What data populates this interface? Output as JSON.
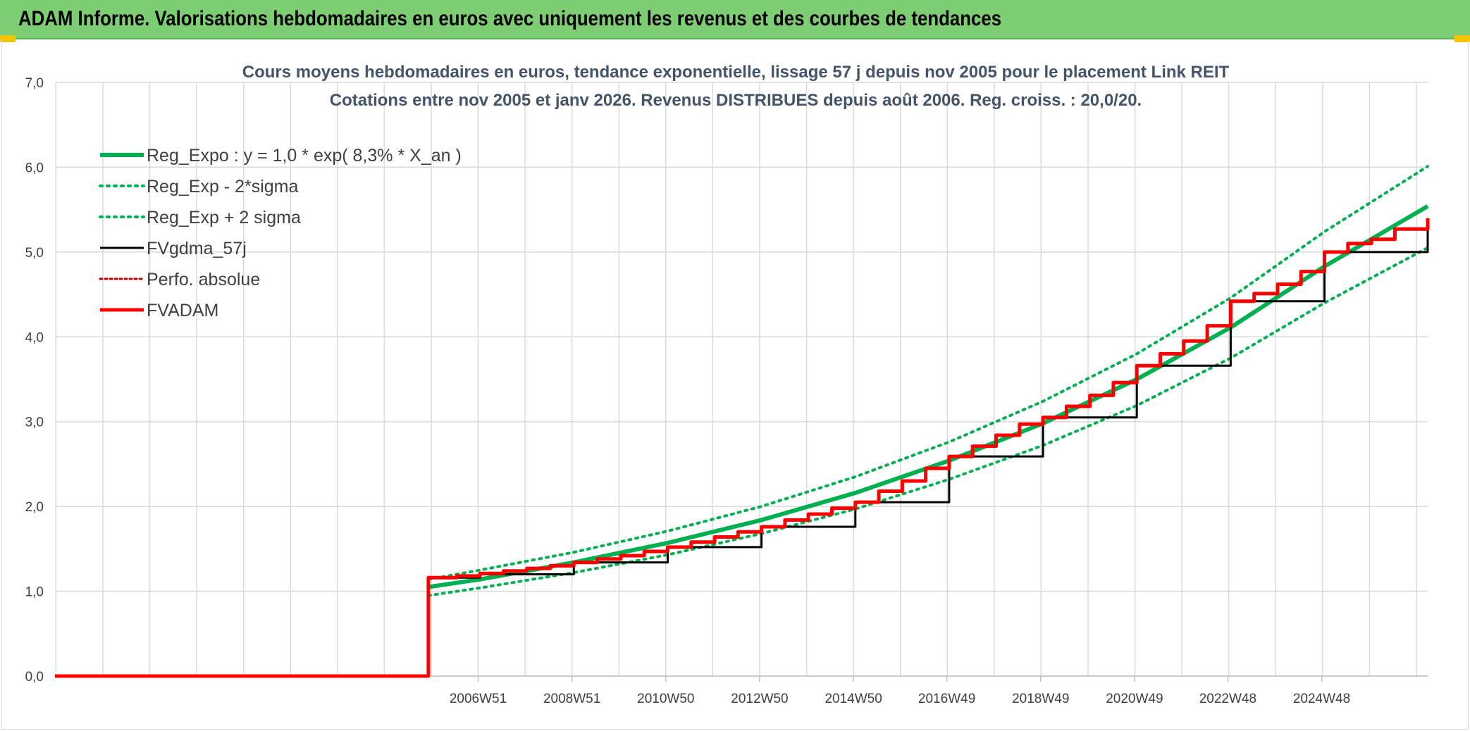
{
  "header": {
    "title": "ADAM Informe. Valorisations hebdomadaires en euros avec uniquement les revenus et des courbes de tendances"
  },
  "colors": {
    "banner": "#7dcd72",
    "trend": "#00b050",
    "fvgdma": "#000000",
    "fvadam": "#ff0000",
    "perfo": "#c00000",
    "grid": "#d9d9d9",
    "title_text": "#44546a"
  },
  "chart_data": {
    "type": "line",
    "title_lines": [
      "Cours moyens hebdomadaires en euros, tendance exponentielle, lissage 57 j depuis nov 2005 pour le placement Link REIT",
      "Cotations entre nov 2005 et janv 2026. Revenus DISTRIBUES depuis août 2006. Reg. croiss. : 20,0/20."
    ],
    "y_ticks": [
      "0,0",
      "1,0",
      "2,0",
      "3,0",
      "4,0",
      "5,0",
      "6,0",
      "7,0"
    ],
    "ylim": [
      0,
      7
    ],
    "x_ticks": [
      "2006W51",
      "2008W51",
      "2010W50",
      "2012W50",
      "2014W50",
      "2016W49",
      "2018W49",
      "2020W49",
      "2022W48",
      "2024W48"
    ],
    "x_tick_years": [
      2006.96,
      2008.96,
      2010.96,
      2012.96,
      2014.96,
      2016.95,
      2018.95,
      2020.95,
      2022.94,
      2024.94
    ],
    "xlim": [
      1997.94,
      2027.2
    ],
    "grid": true,
    "legend_position": "top-left",
    "start_year": 2005.9,
    "series": [
      {
        "name": "Reg_Expo : y = 1,0 * exp( 8,3% *  X_an )",
        "style": "solid-thick",
        "color": "#00b050",
        "x": [
          2005.9,
          2007,
          2009,
          2011,
          2013,
          2015,
          2017,
          2019,
          2021,
          2023,
          2025,
          2027.2
        ],
        "y": [
          1.05,
          1.14,
          1.34,
          1.57,
          1.84,
          2.16,
          2.54,
          2.98,
          3.5,
          4.11,
          4.83,
          5.54
        ]
      },
      {
        "name": "Reg_Exp - 2*sigma",
        "style": "dotted",
        "color": "#00b050",
        "x": [
          2005.9,
          2007,
          2009,
          2011,
          2013,
          2015,
          2017,
          2019,
          2021,
          2023,
          2025,
          2027.2
        ],
        "y": [
          0.95,
          1.04,
          1.22,
          1.43,
          1.68,
          1.97,
          2.32,
          2.72,
          3.19,
          3.75,
          4.4,
          5.05
        ]
      },
      {
        "name": "Reg_Exp + 2 sigma",
        "style": "dotted",
        "color": "#00b050",
        "x": [
          2005.9,
          2007,
          2009,
          2011,
          2013,
          2015,
          2017,
          2019,
          2021,
          2023,
          2025,
          2027.2
        ],
        "y": [
          1.14,
          1.25,
          1.46,
          1.71,
          2.0,
          2.35,
          2.76,
          3.24,
          3.8,
          4.46,
          5.24,
          6.01
        ]
      },
      {
        "name": "FVgdma_57j",
        "style": "solid",
        "color": "#000000",
        "x": [
          1997.94,
          2005.9,
          2005.9,
          2007,
          2009,
          2011,
          2013,
          2015,
          2017,
          2019,
          2021,
          2023,
          2025,
          2027.2
        ],
        "y": [
          0,
          0,
          1.16,
          1.2,
          1.34,
          1.52,
          1.76,
          2.05,
          2.59,
          3.05,
          3.66,
          4.42,
          5.0,
          5.38
        ]
      },
      {
        "name": "Perfo. absolue",
        "style": "dotted-thin",
        "color": "#c00000",
        "x": [],
        "y": []
      },
      {
        "name": "FVADAM",
        "style": "solid-thick-step",
        "color": "#ff0000",
        "x": [
          1997.94,
          2005.9,
          2005.9,
          2006.5,
          2007,
          2007.5,
          2008,
          2008.5,
          2009,
          2009.5,
          2010,
          2010.5,
          2011,
          2011.5,
          2012,
          2012.5,
          2013,
          2013.5,
          2014,
          2014.5,
          2015,
          2015.5,
          2016,
          2016.5,
          2017,
          2017.5,
          2018,
          2018.5,
          2019,
          2019.5,
          2020,
          2020.5,
          2021,
          2021.5,
          2022,
          2022.5,
          2023,
          2023.5,
          2024,
          2024.5,
          2025,
          2025.5,
          2026,
          2026.5,
          2027.2
        ],
        "y": [
          0,
          0,
          1.16,
          1.18,
          1.21,
          1.24,
          1.27,
          1.3,
          1.34,
          1.38,
          1.42,
          1.47,
          1.52,
          1.58,
          1.64,
          1.7,
          1.76,
          1.84,
          1.91,
          1.98,
          2.05,
          2.18,
          2.3,
          2.45,
          2.59,
          2.71,
          2.84,
          2.97,
          3.05,
          3.18,
          3.31,
          3.46,
          3.66,
          3.8,
          3.95,
          4.13,
          4.42,
          4.51,
          4.62,
          4.77,
          5.0,
          5.1,
          5.15,
          5.27,
          5.4
        ]
      }
    ]
  }
}
